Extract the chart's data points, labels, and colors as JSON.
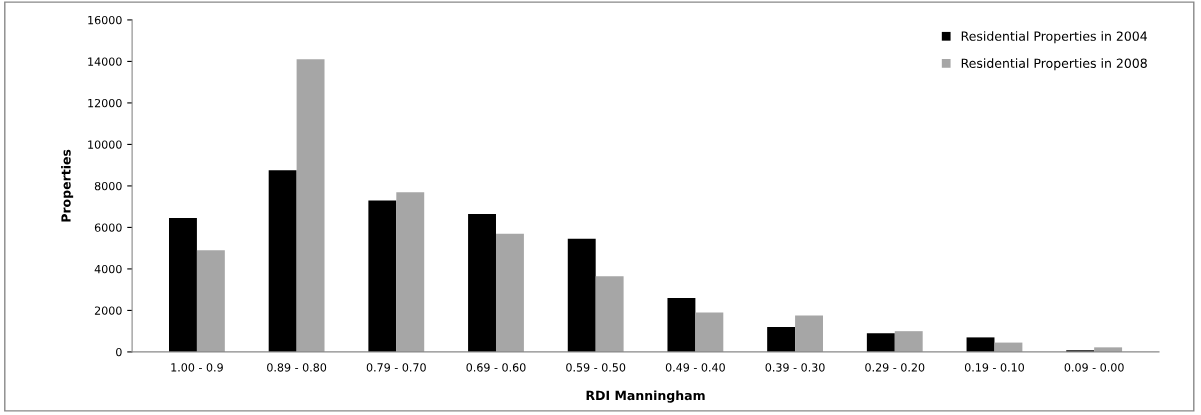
{
  "chart_data": {
    "type": "bar",
    "xlabel": "RDI Manningham",
    "ylabel": "Properties",
    "categories": [
      "1.00 - 0.9",
      "0.89 - 0.80",
      "0.79 - 0.70",
      "0.69 - 0.60",
      "0.59 - 0.50",
      "0.49 - 0.40",
      "0.39 - 0.30",
      "0.29 - 0.20",
      "0.19 - 0.10",
      "0.09 - 0.00"
    ],
    "series": [
      {
        "name": "Residential Properties in 2004",
        "color": "#000000",
        "values": [
          6450,
          8750,
          7300,
          6650,
          5450,
          2600,
          1200,
          900,
          700,
          80
        ]
      },
      {
        "name": "Residential Properties in 2008",
        "color": "#a6a6a6",
        "values": [
          4900,
          14100,
          7700,
          5700,
          3650,
          1900,
          1750,
          1000,
          450,
          220
        ]
      }
    ],
    "ylim": [
      0,
      16000
    ],
    "yticks": [
      0,
      2000,
      4000,
      6000,
      8000,
      10000,
      12000,
      14000,
      16000
    ],
    "grid": false,
    "legend": "top right"
  }
}
